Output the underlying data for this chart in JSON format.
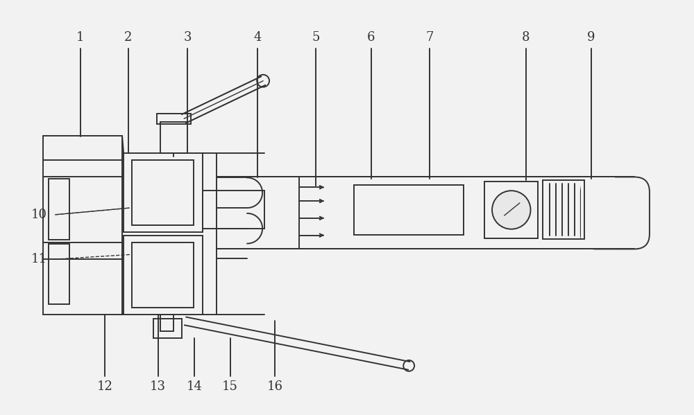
{
  "bg_color": "#f2f2f2",
  "line_color": "#333333",
  "lw": 1.4,
  "fig_w": 10.0,
  "fig_h": 5.99
}
